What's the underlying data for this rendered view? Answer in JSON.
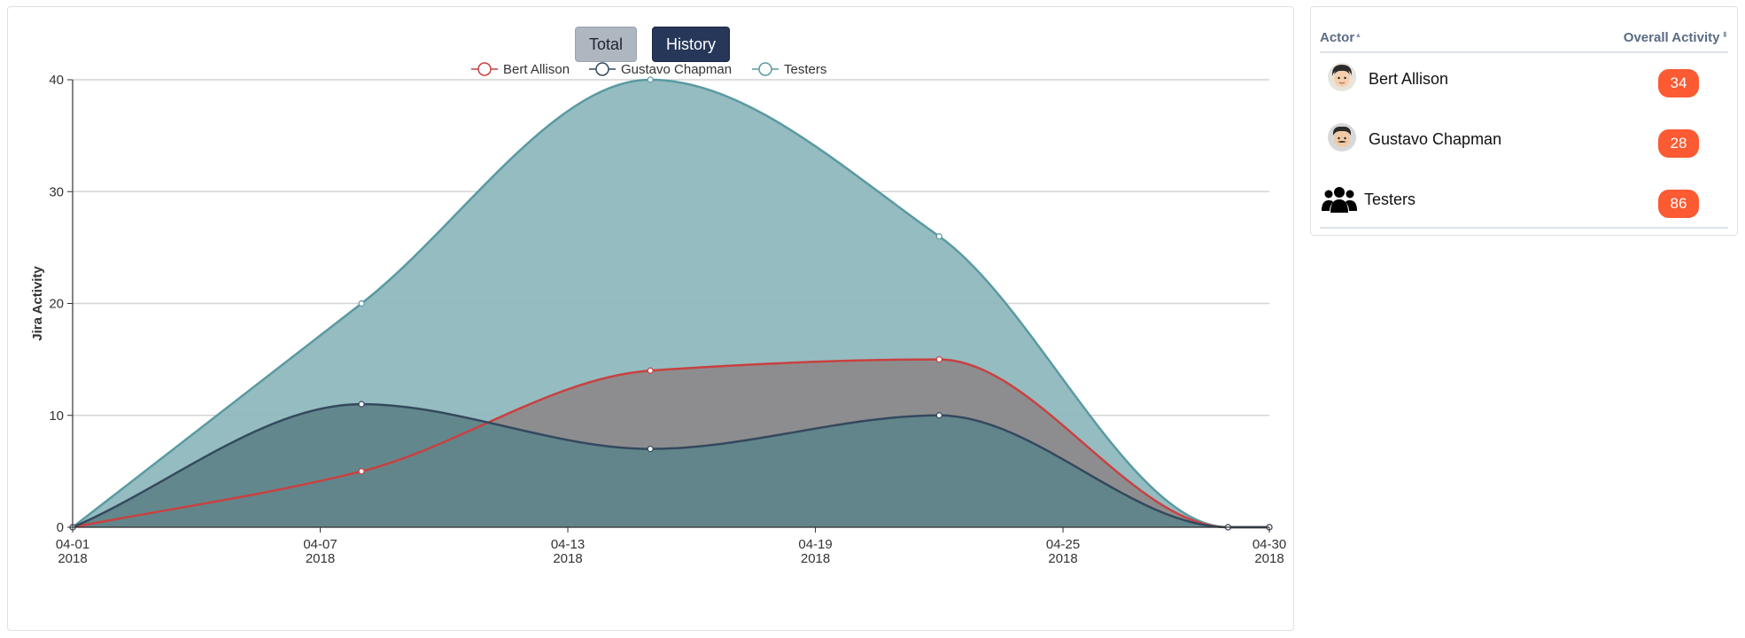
{
  "controls": {
    "total_label": "Total",
    "history_label": "History"
  },
  "chart_data": {
    "type": "area",
    "xlabel": "",
    "ylabel": "Jira Activity",
    "ylim": [
      0,
      40
    ],
    "yticks": [
      0,
      10,
      20,
      30,
      40
    ],
    "x_dates": [
      "2018-04-01",
      "2018-04-08",
      "2018-04-15",
      "2018-04-22",
      "2018-04-29",
      "2018-04-30"
    ],
    "x_ticks": [
      {
        "date": "2018-04-01",
        "line1": "04-01",
        "line2": "2018"
      },
      {
        "date": "2018-04-07",
        "line1": "04-07",
        "line2": "2018"
      },
      {
        "date": "2018-04-13",
        "line1": "04-13",
        "line2": "2018"
      },
      {
        "date": "2018-04-19",
        "line1": "04-19",
        "line2": "2018"
      },
      {
        "date": "2018-04-25",
        "line1": "04-25",
        "line2": "2018"
      },
      {
        "date": "2018-04-30",
        "line1": "04-30",
        "line2": "2018"
      }
    ],
    "xlim": [
      "2018-04-01",
      "2018-04-30"
    ],
    "grid": true,
    "legend_position": "top-center",
    "series": [
      {
        "name": "Testers",
        "color": "#5a9aa2",
        "fill": "#8fb8be",
        "values": [
          0,
          20,
          40,
          26,
          0,
          0
        ]
      },
      {
        "name": "Bert Allison",
        "color": "#c94140",
        "fill": "#8c8a8c",
        "values": [
          0,
          5,
          14,
          15,
          0,
          0
        ]
      },
      {
        "name": "Gustavo Chapman",
        "color": "#34495e",
        "fill": "#5f858b",
        "values": [
          0,
          11,
          7,
          10,
          0,
          0
        ]
      }
    ],
    "legend": [
      {
        "name": "Bert Allison",
        "color": "#c94140"
      },
      {
        "name": "Gustavo Chapman",
        "color": "#34495e"
      },
      {
        "name": "Testers",
        "color": "#5a9aa2"
      }
    ]
  },
  "table": {
    "col_actor": "Actor",
    "col_activity": "Overall Activity",
    "rows": [
      {
        "name": "Bert Allison",
        "activity": "34",
        "icon": "avatar-icon"
      },
      {
        "name": "Gustavo Chapman",
        "activity": "28",
        "icon": "avatar-icon"
      },
      {
        "name": "Testers",
        "activity": "86",
        "icon": "users-group-icon"
      }
    ],
    "badge_color": "#fb5a32"
  }
}
